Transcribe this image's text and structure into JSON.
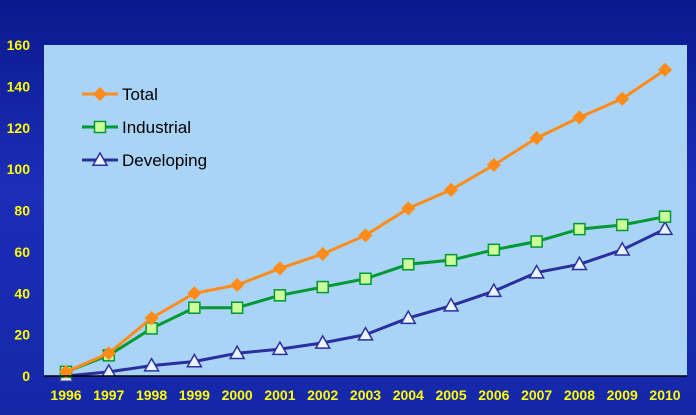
{
  "chart_data": {
    "type": "line",
    "title": "",
    "xlabel": "",
    "ylabel": "",
    "categories": [
      "1996",
      "1997",
      "1998",
      "1999",
      "2000",
      "2001",
      "2002",
      "2003",
      "2004",
      "2005",
      "2006",
      "2007",
      "2008",
      "2009",
      "2010"
    ],
    "ylim": [
      0,
      160
    ],
    "yticks": [
      "0",
      "20",
      "40",
      "60",
      "80",
      "100",
      "120",
      "140",
      "160"
    ],
    "grid": false,
    "legend_position": "top-left",
    "series": [
      {
        "name": "Total",
        "color": "#ff8c1a",
        "marker": "diamond",
        "values": [
          2,
          11,
          28,
          40,
          44,
          52,
          59,
          68,
          81,
          90,
          102,
          115,
          125,
          134,
          148
        ]
      },
      {
        "name": "Industrial",
        "color": "#009933",
        "marker": "square",
        "values": [
          2,
          10,
          23,
          33,
          33,
          39,
          43,
          47,
          54,
          56,
          61,
          65,
          71,
          73,
          77
        ]
      },
      {
        "name": "Developing",
        "color": "#2b2f9e",
        "marker": "triangle",
        "values": [
          0,
          2,
          5,
          7,
          11,
          13,
          16,
          20,
          28,
          34,
          41,
          50,
          54,
          61,
          71
        ]
      }
    ],
    "colors": {
      "plot_bg": "#a9d4f5",
      "tick_text": "#ffff00",
      "axis": "#000000"
    }
  }
}
